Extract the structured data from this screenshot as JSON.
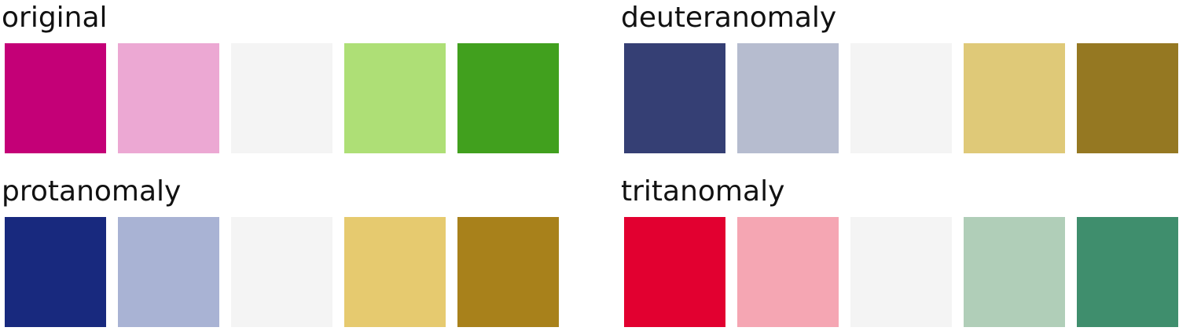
{
  "panels": [
    {
      "title": "original",
      "swatches": [
        {
          "name": "swatch-dark-magenta",
          "color": "#C40077"
        },
        {
          "name": "swatch-light-pink",
          "color": "#ECA8D3"
        },
        {
          "name": "swatch-neutral",
          "color": "#F4F4F4"
        },
        {
          "name": "swatch-light-green",
          "color": "#AEDF76"
        },
        {
          "name": "swatch-dark-green",
          "color": "#41A01E"
        }
      ]
    },
    {
      "title": "deuteranomaly",
      "swatches": [
        {
          "name": "swatch-dark-navy",
          "color": "#353F74"
        },
        {
          "name": "swatch-light-lavender",
          "color": "#B6BCCF"
        },
        {
          "name": "swatch-neutral",
          "color": "#F4F4F4"
        },
        {
          "name": "swatch-light-gold",
          "color": "#DFC978"
        },
        {
          "name": "swatch-dark-olive",
          "color": "#957822"
        }
      ]
    },
    {
      "title": "protanomaly",
      "swatches": [
        {
          "name": "swatch-dark-blue",
          "color": "#18297E"
        },
        {
          "name": "swatch-light-periwinkle",
          "color": "#A9B3D4"
        },
        {
          "name": "swatch-neutral",
          "color": "#F4F4F4"
        },
        {
          "name": "swatch-light-yellow",
          "color": "#E6CA6F"
        },
        {
          "name": "swatch-dark-bronze",
          "color": "#A8811B"
        }
      ]
    },
    {
      "title": "tritanomaly",
      "swatches": [
        {
          "name": "swatch-red",
          "color": "#E20030"
        },
        {
          "name": "swatch-light-rose",
          "color": "#F5A6B3"
        },
        {
          "name": "swatch-neutral",
          "color": "#F4F4F4"
        },
        {
          "name": "swatch-light-sage",
          "color": "#B0CEB8"
        },
        {
          "name": "swatch-teal-green",
          "color": "#3F8E6D"
        }
      ]
    }
  ]
}
